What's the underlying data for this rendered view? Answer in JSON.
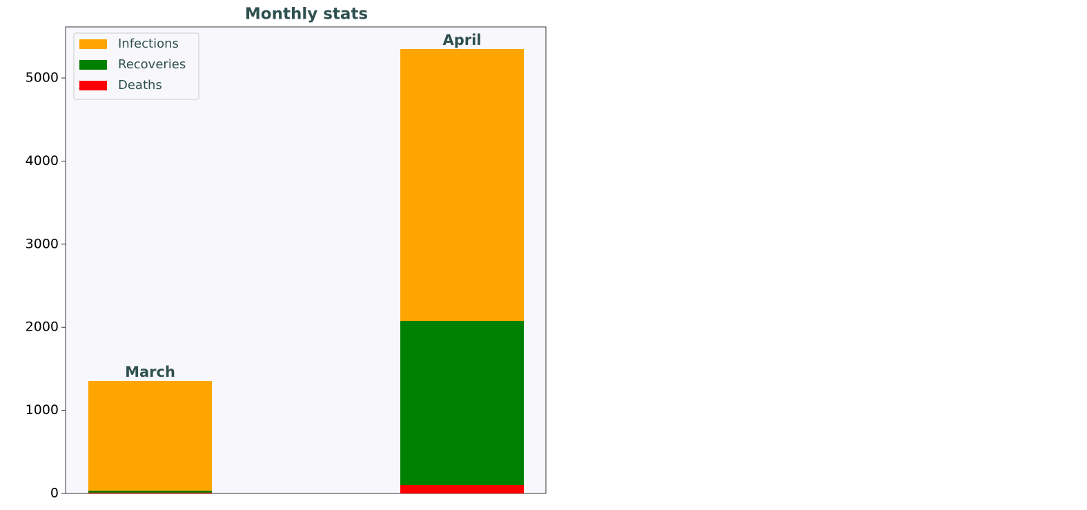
{
  "chart_data": {
    "type": "bar",
    "title": "Monthly stats",
    "categories": [
      "March",
      "April"
    ],
    "series": [
      {
        "name": "Infections",
        "color": "#ffa500",
        "values": [
          1354,
          5349
        ]
      },
      {
        "name": "Recoveries",
        "color": "#008000",
        "values": [
          33,
          2076
        ]
      },
      {
        "name": "Deaths",
        "color": "#ff0000",
        "values": [
          10,
          100
        ]
      }
    ],
    "ylim": [
      0,
      5615
    ],
    "yticks": [
      0,
      1000,
      2000,
      3000,
      4000,
      5000
    ],
    "legend": "upper left"
  }
}
